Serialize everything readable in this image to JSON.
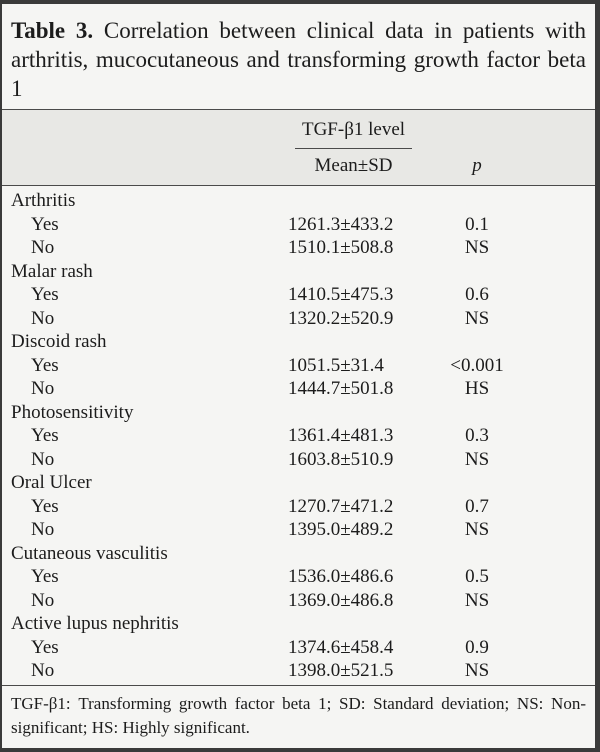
{
  "title": {
    "label": "Table 3.",
    "text": "Correlation between clinical data in patients with arthritis, mucocutaneous and transforming growth factor beta 1"
  },
  "header": {
    "spanner": "TGF-β1 level",
    "mean_col": "Mean±SD",
    "p_col": "p"
  },
  "rows": [
    {
      "label": "Arthritis",
      "group": true
    },
    {
      "label": "Yes",
      "mean": "1261.3±433.2",
      "p": "0.1"
    },
    {
      "label": "No",
      "mean": "1510.1±508.8",
      "p": "NS"
    },
    {
      "label": "Malar rash",
      "group": true
    },
    {
      "label": "Yes",
      "mean": "1410.5±475.3",
      "p": "0.6"
    },
    {
      "label": "No",
      "mean": "1320.2±520.9",
      "p": "NS"
    },
    {
      "label": "Discoid rash",
      "group": true
    },
    {
      "label": "Yes",
      "mean": "1051.5±31.4",
      "p": "<0.001"
    },
    {
      "label": "No",
      "mean": "1444.7±501.8",
      "p": "HS"
    },
    {
      "label": "Photosensitivity",
      "group": true
    },
    {
      "label": "Yes",
      "mean": "1361.4±481.3",
      "p": "0.3"
    },
    {
      "label": "No",
      "mean": "1603.8±510.9",
      "p": "NS"
    },
    {
      "label": "Oral Ulcer",
      "group": true
    },
    {
      "label": "Yes",
      "mean": "1270.7±471.2",
      "p": "0.7"
    },
    {
      "label": "No",
      "mean": "1395.0±489.2",
      "p": "NS"
    },
    {
      "label": "Cutaneous vasculitis",
      "group": true
    },
    {
      "label": "Yes",
      "mean": "1536.0±486.6",
      "p": "0.5"
    },
    {
      "label": "No",
      "mean": "1369.0±486.8",
      "p": "NS"
    },
    {
      "label": "Active lupus nephritis",
      "group": true
    },
    {
      "label": "Yes",
      "mean": "1374.6±458.4",
      "p": "0.9"
    },
    {
      "label": "No",
      "mean": "1398.0±521.5",
      "p": "NS"
    }
  ],
  "footnote": "TGF-β1: Transforming growth factor beta 1; SD: Standard deviation; NS: Non-significant; HS: Highly significant.",
  "colors": {
    "background": "#f5f5f3",
    "header_band": "#e8e8e5",
    "text": "#1c1c1c",
    "rule": "#4a4a4a",
    "frame": "#3a3a3a"
  }
}
